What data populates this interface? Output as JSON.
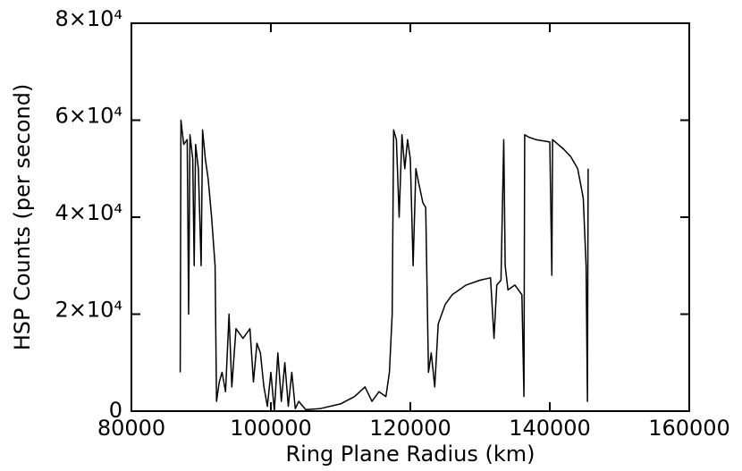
{
  "chart_data": {
    "type": "line",
    "x_label": "Ring Plane Radius (km)",
    "y_label": "HSP Counts (per second)",
    "color": "#000000",
    "xlim": [
      80000,
      160000
    ],
    "xticks": [
      80000,
      100000,
      120000,
      140000,
      160000
    ],
    "ylim": [
      0,
      80000
    ],
    "yticks": [
      0,
      {
        "value": 20000,
        "label": "2×10⁴"
      },
      {
        "value": 40000,
        "label": "4×10⁴"
      },
      {
        "value": 60000,
        "label": "6×10⁴"
      },
      {
        "value": 80000,
        "label": "8×10⁴"
      }
    ],
    "x": [
      87000,
      87100,
      87500,
      88000,
      88200,
      88400,
      88800,
      89000,
      89200,
      89600,
      90000,
      90200,
      90600,
      91000,
      91500,
      92000,
      92200,
      92600,
      93000,
      93500,
      94000,
      94400,
      95000,
      96000,
      97000,
      97500,
      98000,
      98500,
      99000,
      99500,
      100000,
      100500,
      101000,
      101500,
      102000,
      102500,
      103000,
      103500,
      104000,
      105000,
      107000,
      110000,
      112000,
      113500,
      114500,
      115500,
      116500,
      117000,
      117400,
      117600,
      118000,
      118400,
      118800,
      119200,
      119600,
      120000,
      120400,
      120800,
      121200,
      121800,
      122200,
      122600,
      123000,
      123500,
      124000,
      125000,
      126000,
      128000,
      130000,
      131500,
      132000,
      132400,
      133000,
      133400,
      133600,
      134000,
      135000,
      136000,
      136300,
      136400,
      137000,
      138000,
      140000,
      140300,
      140400,
      142000,
      143000,
      144000,
      144800,
      145200,
      145400,
      145500
    ],
    "values": [
      8000,
      60000,
      55000,
      56000,
      20000,
      57000,
      52000,
      30000,
      55000,
      50000,
      30000,
      58000,
      52000,
      48000,
      40000,
      30000,
      2000,
      6000,
      8000,
      4000,
      20000,
      5000,
      17000,
      15000,
      17000,
      6000,
      14000,
      12000,
      5000,
      1000,
      8000,
      0,
      12000,
      2000,
      10000,
      1000,
      8000,
      500,
      2000,
      300,
      500,
      1500,
      3000,
      5000,
      2000,
      4000,
      3000,
      8000,
      20000,
      58000,
      56000,
      40000,
      57000,
      50000,
      56000,
      52000,
      30000,
      50000,
      47000,
      43000,
      42000,
      8000,
      12000,
      5000,
      18000,
      22000,
      24000,
      26000,
      27000,
      27500,
      15000,
      26000,
      27000,
      56000,
      30000,
      25000,
      26000,
      24000,
      3000,
      57000,
      56500,
      56000,
      55500,
      28000,
      56000,
      54000,
      52500,
      50000,
      44000,
      30000,
      2000,
      50000
    ]
  }
}
